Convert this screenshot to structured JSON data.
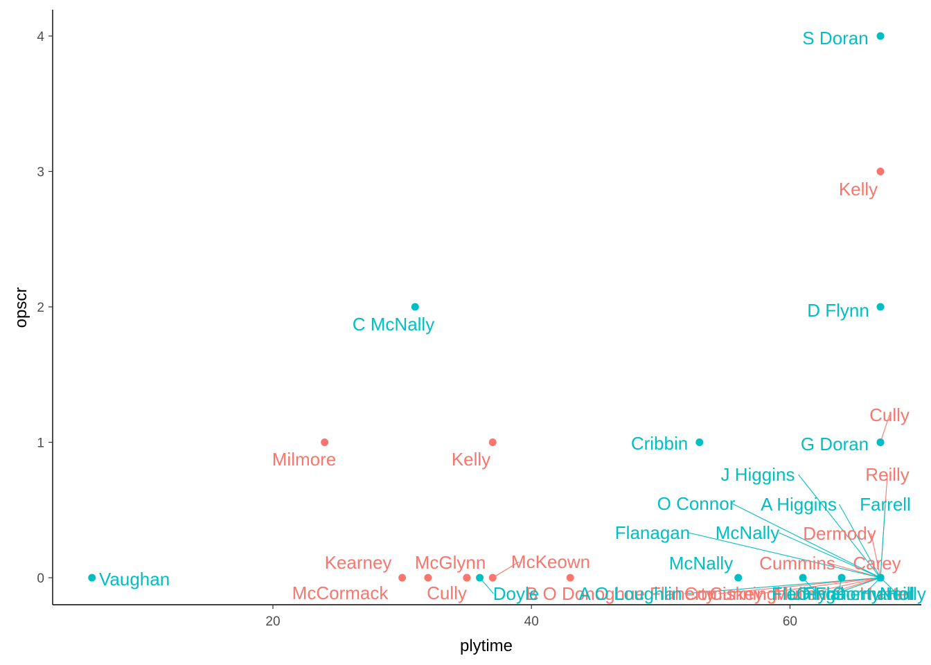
{
  "chart_data": {
    "type": "scatter",
    "title": "",
    "xlabel": "plytime",
    "ylabel": "opscr",
    "xlim": [
      3,
      70
    ],
    "ylim": [
      -0.2,
      4.2
    ],
    "x_ticks": [
      20,
      40,
      60
    ],
    "y_ticks": [
      0,
      1,
      2,
      3,
      4
    ],
    "grid": false,
    "legend": "none",
    "series": [
      {
        "color": "#f8766d",
        "points": [
          {
            "label": "Kelly",
            "x": 67,
            "y": 3
          },
          {
            "label": "Milmore",
            "x": 24,
            "y": 1
          },
          {
            "label": "Kelly",
            "x": 37,
            "y": 1
          },
          {
            "label": "Cully",
            "x": 67,
            "y": 1
          },
          {
            "label": "Kearney",
            "x": 30,
            "y": 0
          },
          {
            "label": "McCormack",
            "x": 32,
            "y": 0
          },
          {
            "label": "McGlynn",
            "x": 35,
            "y": 0
          },
          {
            "label": "Cully",
            "x": 35,
            "y": 0
          },
          {
            "label": "McKeown",
            "x": 37,
            "y": 0
          },
          {
            "label": "B O Donoghue",
            "x": 43,
            "y": 0
          },
          {
            "label": "Reilly",
            "x": 67,
            "y": 0
          },
          {
            "label": "Dermody",
            "x": 67,
            "y": 0
          },
          {
            "label": "Cummins",
            "x": 67,
            "y": 0
          },
          {
            "label": "Carey",
            "x": 67,
            "y": 0
          },
          {
            "label": "Flaherty",
            "x": 67,
            "y": 0
          },
          {
            "label": "Comiskey",
            "x": 67,
            "y": 0
          },
          {
            "label": "Cunningham",
            "x": 67,
            "y": 0
          },
          {
            "label": "Mullen",
            "x": 67,
            "y": 0
          },
          {
            "label": "Hunter",
            "x": 67,
            "y": 0
          }
        ]
      },
      {
        "color": "#00bfc4",
        "points": [
          {
            "label": "S Doran",
            "x": 67,
            "y": 4
          },
          {
            "label": "D Flynn",
            "x": 67,
            "y": 2
          },
          {
            "label": "C McNally",
            "x": 31,
            "y": 2
          },
          {
            "label": "Cribbin",
            "x": 53,
            "y": 1
          },
          {
            "label": "G Doran",
            "x": 67,
            "y": 1
          },
          {
            "label": "Vaughan",
            "x": 6,
            "y": 0
          },
          {
            "label": "Doyle",
            "x": 36,
            "y": 0
          },
          {
            "label": "McNally",
            "x": 56,
            "y": 0
          },
          {
            "label": "J Higgins",
            "x": 67,
            "y": 0
          },
          {
            "label": "O Connor",
            "x": 67,
            "y": 0
          },
          {
            "label": "A Higgins",
            "x": 67,
            "y": 0
          },
          {
            "label": "Farrell",
            "x": 67,
            "y": 0
          },
          {
            "label": "Flanagan",
            "x": 67,
            "y": 0
          },
          {
            "label": "McNally",
            "x": 67,
            "y": 0
          },
          {
            "label": "L Flynn",
            "x": 61,
            "y": 0
          },
          {
            "label": "O Flaherty",
            "x": 64,
            "y": 0
          },
          {
            "label": "A O Loughlin",
            "x": 67,
            "y": 0
          },
          {
            "label": "Fleming",
            "x": 67,
            "y": 0
          },
          {
            "label": "Gorman",
            "x": 67,
            "y": 0
          },
          {
            "label": "Neill",
            "x": 67,
            "y": 0
          },
          {
            "label": "Holly",
            "x": 67,
            "y": 0
          }
        ]
      }
    ]
  }
}
